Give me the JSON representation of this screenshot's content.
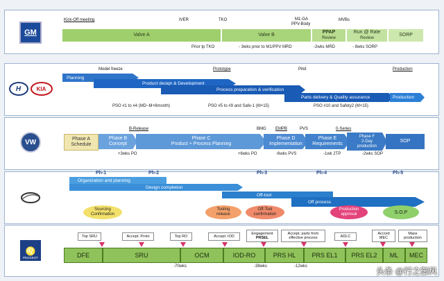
{
  "rows": {
    "gm": {
      "logo": "GM",
      "top_labels": [
        "Kick-Off meeting",
        "IVER",
        "TKO",
        "M1-GA",
        "PPV-Body",
        "MVBs"
      ],
      "segments": [
        "Valve A",
        "Valve B",
        "PPAP",
        "Review",
        "Run @ Rate",
        "Review",
        "SORP"
      ],
      "bottom_labels": [
        "Prior tp TKO",
        "- 3wks prior to M1/PPV MRD",
        "-2wks MRD",
        "- 8wks SORP"
      ]
    },
    "hyundai_kia": {
      "logo_hyundai": "H",
      "logo_kia": "KIA",
      "top_labels": [
        "Model freeze",
        "Prototype",
        "Pilot",
        "Production"
      ],
      "bars": [
        "Planning",
        "Product design & Development",
        "Process preparation & verification",
        "Parts delivery & Quality assurance",
        "Production"
      ],
      "bottom_labels": [
        "PSO #1 to #4 (MD~M+8month)",
        "PSO #5 to #9 and Safe-1 (M+15)",
        "PSO #10 and Safety2 (M+15)"
      ]
    },
    "vw": {
      "logo": "VW",
      "top_labels": [
        "B-Release",
        "BMG",
        "EMPB",
        "PVS",
        "0-Series"
      ],
      "phases": [
        "Phase A",
        "Schedule",
        "Phase B",
        "Concept",
        "Phase C",
        "Product + Process Planning",
        "Phase D",
        "Implementation",
        "Phase E",
        "Requirements",
        "Phase F",
        "2-Day",
        "production",
        "SOP"
      ],
      "bottom_labels": [
        "+3wks PO",
        "+6wks PO",
        "-6wks PVS",
        "-1wk 2TP",
        "-2wks SOP"
      ]
    },
    "renault_nissan": {
      "phase_labels": [
        "Ph-1",
        "Ph-2",
        "Ph-3",
        "Ph-4",
        "Ph-5"
      ],
      "bars": [
        "Organization and planning",
        "Design completion",
        "Off-tool",
        "Off process"
      ],
      "ovals": [
        "Sourcing",
        "Confirmation",
        "Tooling",
        "release",
        "Off-Tool",
        "confirmation",
        "Production",
        "approval",
        "S.O.P"
      ]
    },
    "psa": {
      "logo": "PEUGEOT",
      "gates": [
        "Top SRU",
        "Accept. Proto",
        "Top RO",
        "Accept. IOD",
        "Engagement",
        "PRSEL",
        "Accept. parts from",
        "effective process",
        "ADLC",
        "Accord",
        "MEC",
        "Mass",
        "production"
      ],
      "stages": [
        "DFE",
        "SRU",
        "OCM",
        "IOD-RO",
        "PRS HL",
        "PRS EL1",
        "PRS EL2",
        "ML",
        "MEC"
      ],
      "bottom_labels": [
        "-70wks",
        "-38wks",
        "-12wks"
      ]
    }
  },
  "watermark": "头条 @行之御风"
}
